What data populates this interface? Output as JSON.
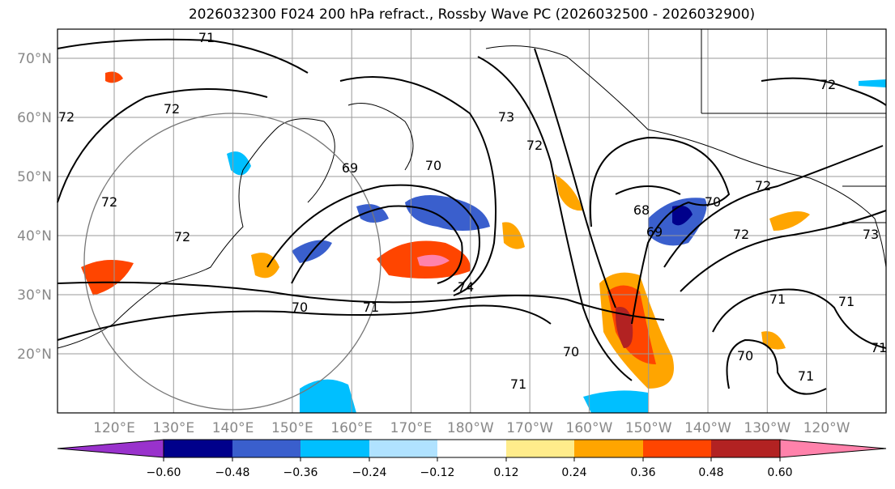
{
  "title": "2026032300 F024 200 hPa refract., Rossby Wave PC (2026032500 - 2026032900)",
  "lat_labels": [
    "70°N",
    "60°N",
    "50°N",
    "40°N",
    "30°N",
    "20°N"
  ],
  "lon_labels": [
    "120°E",
    "130°E",
    "140°E",
    "150°E",
    "160°E",
    "170°E",
    "180°W",
    "170°W",
    "160°W",
    "150°W",
    "140°W",
    "130°W",
    "120°W"
  ],
  "contour_labels": [
    "71",
    "72",
    "72",
    "72",
    "69",
    "70",
    "71",
    "73",
    "72",
    "74",
    "70",
    "71",
    "70",
    "71",
    "68",
    "69",
    "70",
    "72",
    "72",
    "72",
    "71",
    "70",
    "71",
    "72",
    "73",
    "71"
  ],
  "colorbar": {
    "ticks": [
      "−0.60",
      "−0.48",
      "−0.36",
      "−0.24",
      "−0.12",
      "0.12",
      "0.24",
      "0.36",
      "0.48",
      "0.60"
    ],
    "colors": [
      "#9932cc",
      "#00008b",
      "#3a5fcd",
      "#00bfff",
      "#b0e2ff",
      "#ffffff",
      "#ffec8b",
      "#ffa500",
      "#ff4500",
      "#b22222",
      "#ff82ab"
    ]
  }
}
